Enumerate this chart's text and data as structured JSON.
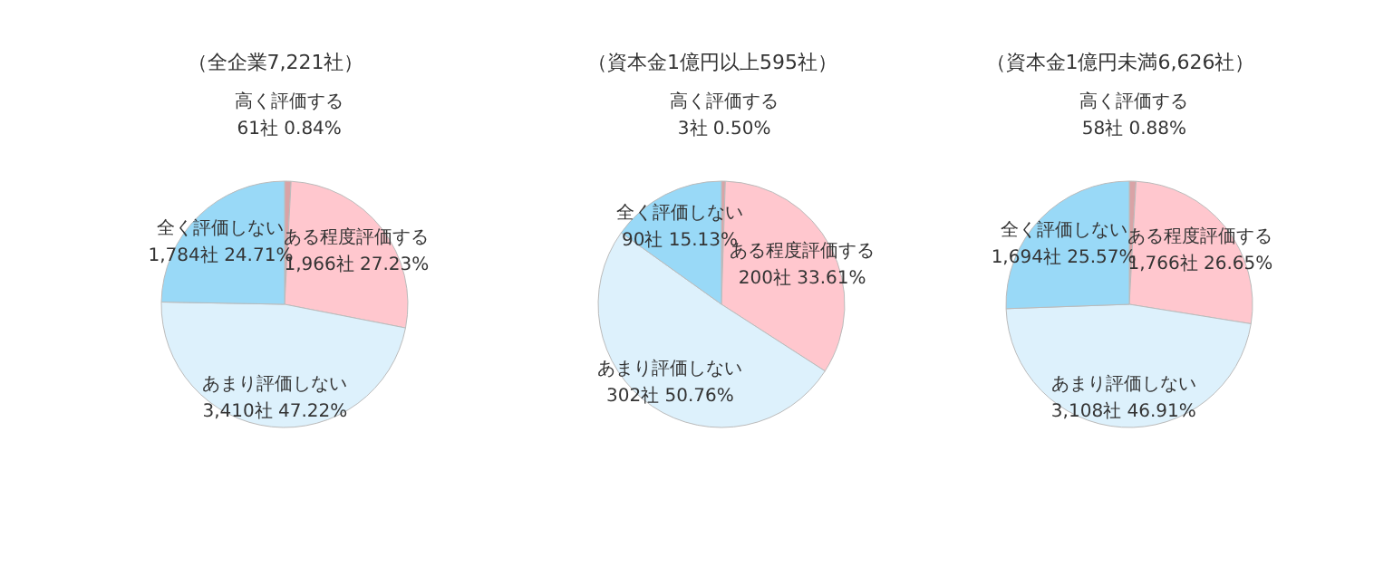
{
  "chart_data": [
    {
      "type": "pie",
      "title": "（全企業7,221社）",
      "categories": [
        "高く評価する",
        "ある程度評価する",
        "あまり評価しない",
        "全く評価しない"
      ],
      "values": [
        61,
        1966,
        3410,
        1784
      ],
      "value_labels": [
        "61社 0.84%",
        "1,966社 27.23%",
        "3,410社 47.22%",
        "1,784社 24.71%"
      ],
      "colors": [
        "#d9a3a6",
        "#ffc7ce",
        "#ddf1fc",
        "#99d9f7"
      ]
    },
    {
      "type": "pie",
      "title": "（資本金1億円以上595社）",
      "categories": [
        "高く評価する",
        "ある程度評価する",
        "あまり評価しない",
        "全く評価しない"
      ],
      "values": [
        3,
        200,
        302,
        90
      ],
      "value_labels": [
        "3社 0.50%",
        "200社 33.61%",
        "302社 50.76%",
        "90社 15.13%"
      ],
      "colors": [
        "#d9a3a6",
        "#ffc7ce",
        "#ddf1fc",
        "#99d9f7"
      ]
    },
    {
      "type": "pie",
      "title": "（資本金1億円未満6,626社）",
      "categories": [
        "高く評価する",
        "ある程度評価する",
        "あまり評価しない",
        "全く評価しない"
      ],
      "values": [
        58,
        1766,
        3108,
        1694
      ],
      "value_labels": [
        "58社 0.88%",
        "1,766社 26.65%",
        "3,108社 46.91%",
        "1,694社 25.57%"
      ],
      "colors": [
        "#d9a3a6",
        "#ffc7ce",
        "#ddf1fc",
        "#99d9f7"
      ]
    }
  ]
}
